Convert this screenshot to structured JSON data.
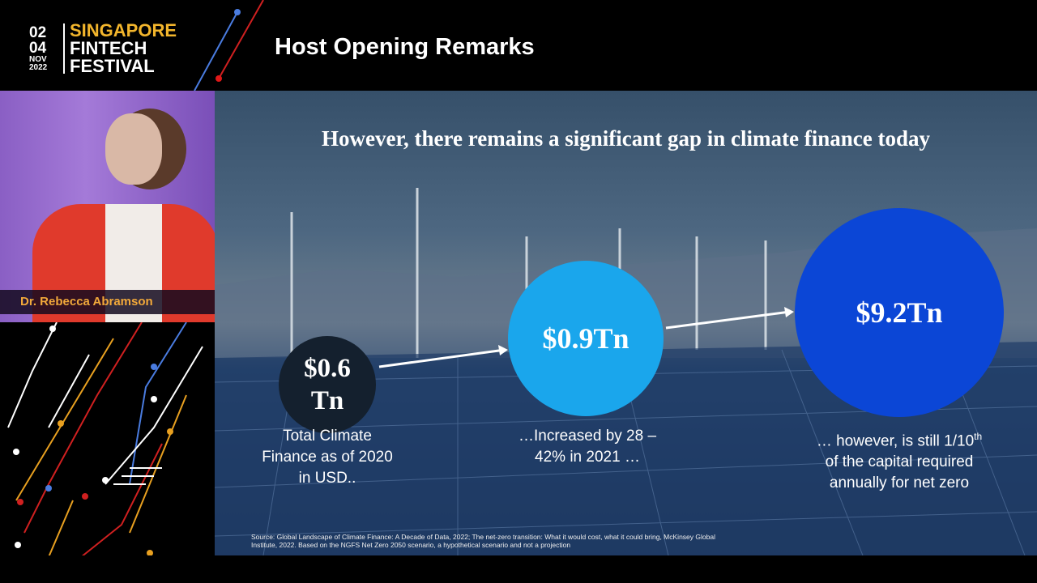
{
  "logo": {
    "dates_top": "02",
    "dates_mid": "04",
    "month": "NOV",
    "year": "2022",
    "line1": "SINGAPORE",
    "line2": "FINTECH",
    "line3": "FESTIVAL"
  },
  "header": {
    "title": "Host Opening Remarks"
  },
  "speaker": {
    "name": "Dr. Rebecca Abramson"
  },
  "slide": {
    "title": "However, there remains a significant gap in climate finance today",
    "circles": [
      {
        "value_line1": "$0.6",
        "value_line2": "Tn",
        "caption": [
          "Total Climate",
          "Finance as of 2020",
          "in USD.."
        ],
        "color": "#14202e"
      },
      {
        "value": "$0.9Tn",
        "caption": [
          "…Increased by 28 –",
          "42% in 2021 …"
        ],
        "color": "#1aa6ec"
      },
      {
        "value": "$9.2Tn",
        "caption_line1": "… however, is still 1/10",
        "caption_sup": "th",
        "caption_line2": "of the capital required",
        "caption_line3": "annually for net zero",
        "color": "#0b46d6"
      }
    ],
    "source": "Source: Global Landscape of Climate Finance: A Decade of Data, 2022; The net-zero transition: What it would cost, what it could bring, McKinsey Global Institute, 2022. Based on the NGFS Net Zero 2050 scenario, a hypothetical scenario and not a projection"
  },
  "colors": {
    "brand_yellow": "#f2b52c",
    "name_orange": "#f2a93a"
  }
}
